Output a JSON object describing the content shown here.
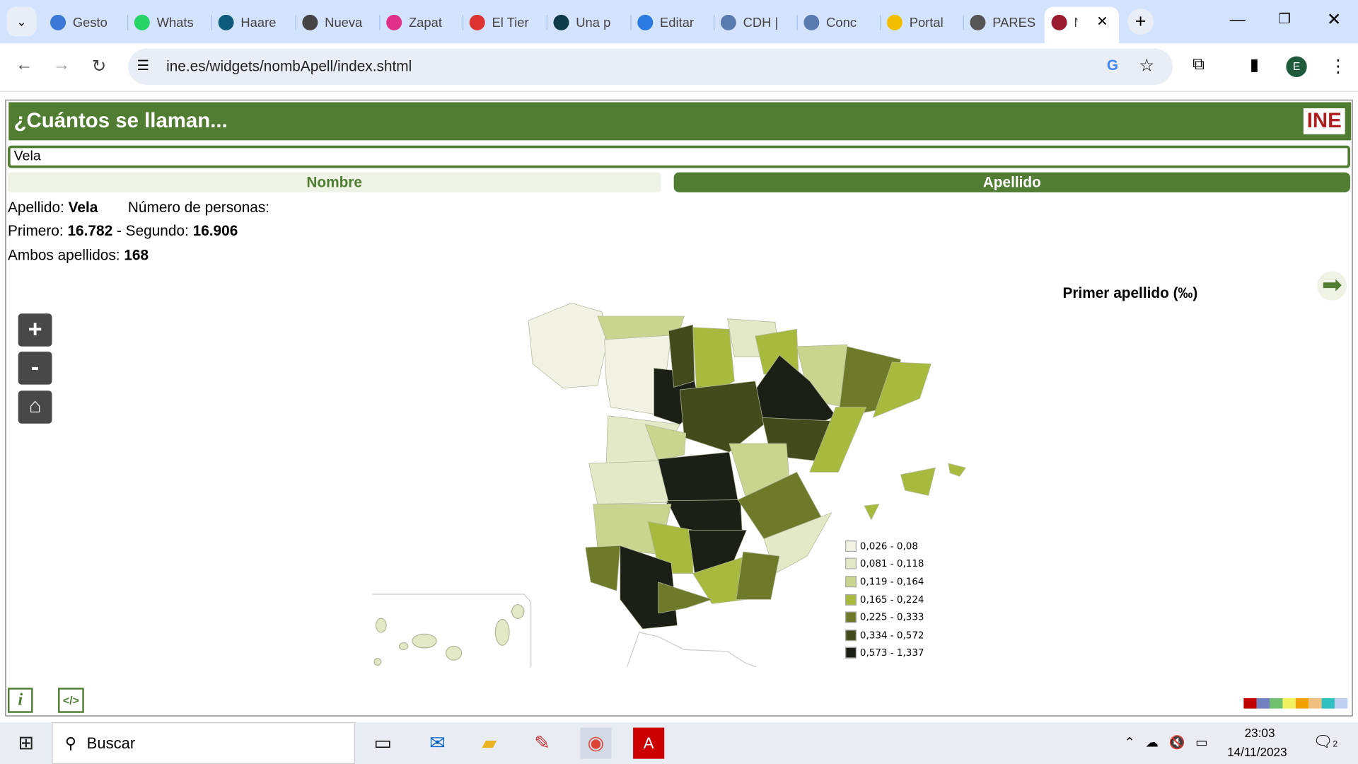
{
  "browser": {
    "tabs": [
      {
        "label": "Gesto",
        "icon": "key-icon",
        "color": "#3c78d8"
      },
      {
        "label": "Whats",
        "icon": "whatsapp-icon",
        "color": "#25d366"
      },
      {
        "label": "Haare",
        "icon": "haaretz-icon",
        "color": "#0e5a7a"
      },
      {
        "label": "Nueva",
        "icon": "chrome-icon",
        "color": "#444444"
      },
      {
        "label": "Zapat",
        "icon": "butterfly-icon",
        "color": "#e0308a"
      },
      {
        "label": "El Tier",
        "icon": "ae-icon",
        "color": "#d33"
      },
      {
        "label": "Una p",
        "icon": "c-icon",
        "color": "#0f3a4a"
      },
      {
        "label": "Editar",
        "icon": "drop-icon",
        "color": "#2a7ae2"
      },
      {
        "label": "CDH |",
        "icon": "crest-icon",
        "color": "#5b7ab0"
      },
      {
        "label": "Conc",
        "icon": "crest-icon",
        "color": "#5b7ab0"
      },
      {
        "label": "Portal",
        "icon": "spain-flag-icon",
        "color": "#f1bf00"
      },
      {
        "label": "PARES",
        "icon": "globe-icon",
        "color": "#555555"
      },
      {
        "label": "N",
        "icon": "ine-e-icon",
        "color": "#9b1b30"
      }
    ],
    "url": "ine.es/widgets/nombApell/index.shtml",
    "profile_initial": "E"
  },
  "widget": {
    "title": "¿Cuántos se llaman...",
    "logo": "INE",
    "search_value": "Vela",
    "tab_nombre": "Nombre",
    "tab_apellido": "Apellido",
    "apellido_label": "Apellido:",
    "apellido_value": "Vela",
    "numero_label": "Número de personas:",
    "primero_label": "Primero:",
    "primero_value": "16.782",
    "dash": "-",
    "segundo_label": "Segundo:",
    "segundo_value": "16.906",
    "ambos_label": "Ambos apellidos:",
    "ambos_value": "168",
    "map_title": "Primer apellido (‰)",
    "zoom_in": "+",
    "zoom_out": "-",
    "legend": [
      {
        "label": "0,026 - 0,08",
        "color": "#f1f2e4"
      },
      {
        "label": "0,081 - 0,118",
        "color": "#e3e8c6"
      },
      {
        "label": "0,119 - 0,164",
        "color": "#c9d48e"
      },
      {
        "label": "0,165 - 0,224",
        "color": "#a8ba3e"
      },
      {
        "label": "0,225 - 0,333",
        "color": "#6e7a2a"
      },
      {
        "label": "0,334 - 0,572",
        "color": "#434a1c"
      },
      {
        "label": "0,573 - 1,337",
        "color": "#1c1f16"
      }
    ],
    "accent": "#507d31",
    "palette": [
      "#c00000",
      "#7080c0",
      "#70c070",
      "#f0f060",
      "#f0a000",
      "#f0c080",
      "#30c0c0",
      "#c0d0f0"
    ]
  },
  "taskbar": {
    "search": "Buscar",
    "time": "23:03",
    "date": "14/11/2023",
    "notifications": "2"
  }
}
